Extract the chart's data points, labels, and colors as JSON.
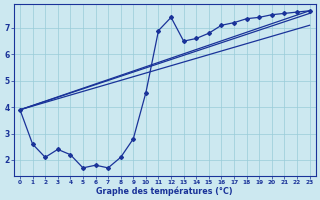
{
  "background_color": "#cce8f0",
  "grid_color": "#99ccd9",
  "line_color": "#1a3399",
  "marker_color": "#1a3399",
  "xlabel": "Graphe des températures (°C)",
  "xlabel_color": "#1a3399",
  "tick_color": "#1a3399",
  "xlim": [
    -0.5,
    23.5
  ],
  "ylim": [
    1.4,
    7.9
  ],
  "yticks": [
    2,
    3,
    4,
    5,
    6,
    7
  ],
  "xticks": [
    0,
    1,
    2,
    3,
    4,
    5,
    6,
    7,
    8,
    9,
    10,
    11,
    12,
    13,
    14,
    15,
    16,
    17,
    18,
    19,
    20,
    21,
    22,
    23
  ],
  "line1_x": [
    0,
    1,
    2,
    3,
    4,
    5,
    6,
    7,
    8,
    9,
    10,
    11,
    12,
    13,
    14,
    15,
    16,
    17,
    18,
    19,
    20,
    21,
    22,
    23
  ],
  "line1_y": [
    3.9,
    2.6,
    2.1,
    2.4,
    2.2,
    1.7,
    1.8,
    1.7,
    2.1,
    2.8,
    4.55,
    6.9,
    7.4,
    6.5,
    6.6,
    6.8,
    7.1,
    7.2,
    7.35,
    7.4,
    7.5,
    7.55,
    7.6,
    7.65
  ],
  "line2_x": [
    0,
    23
  ],
  "line2_y": [
    3.9,
    7.65
  ],
  "line3_x": [
    0,
    23
  ],
  "line3_y": [
    3.9,
    7.55
  ],
  "line4_x": [
    0,
    23
  ],
  "line4_y": [
    3.9,
    7.1
  ]
}
